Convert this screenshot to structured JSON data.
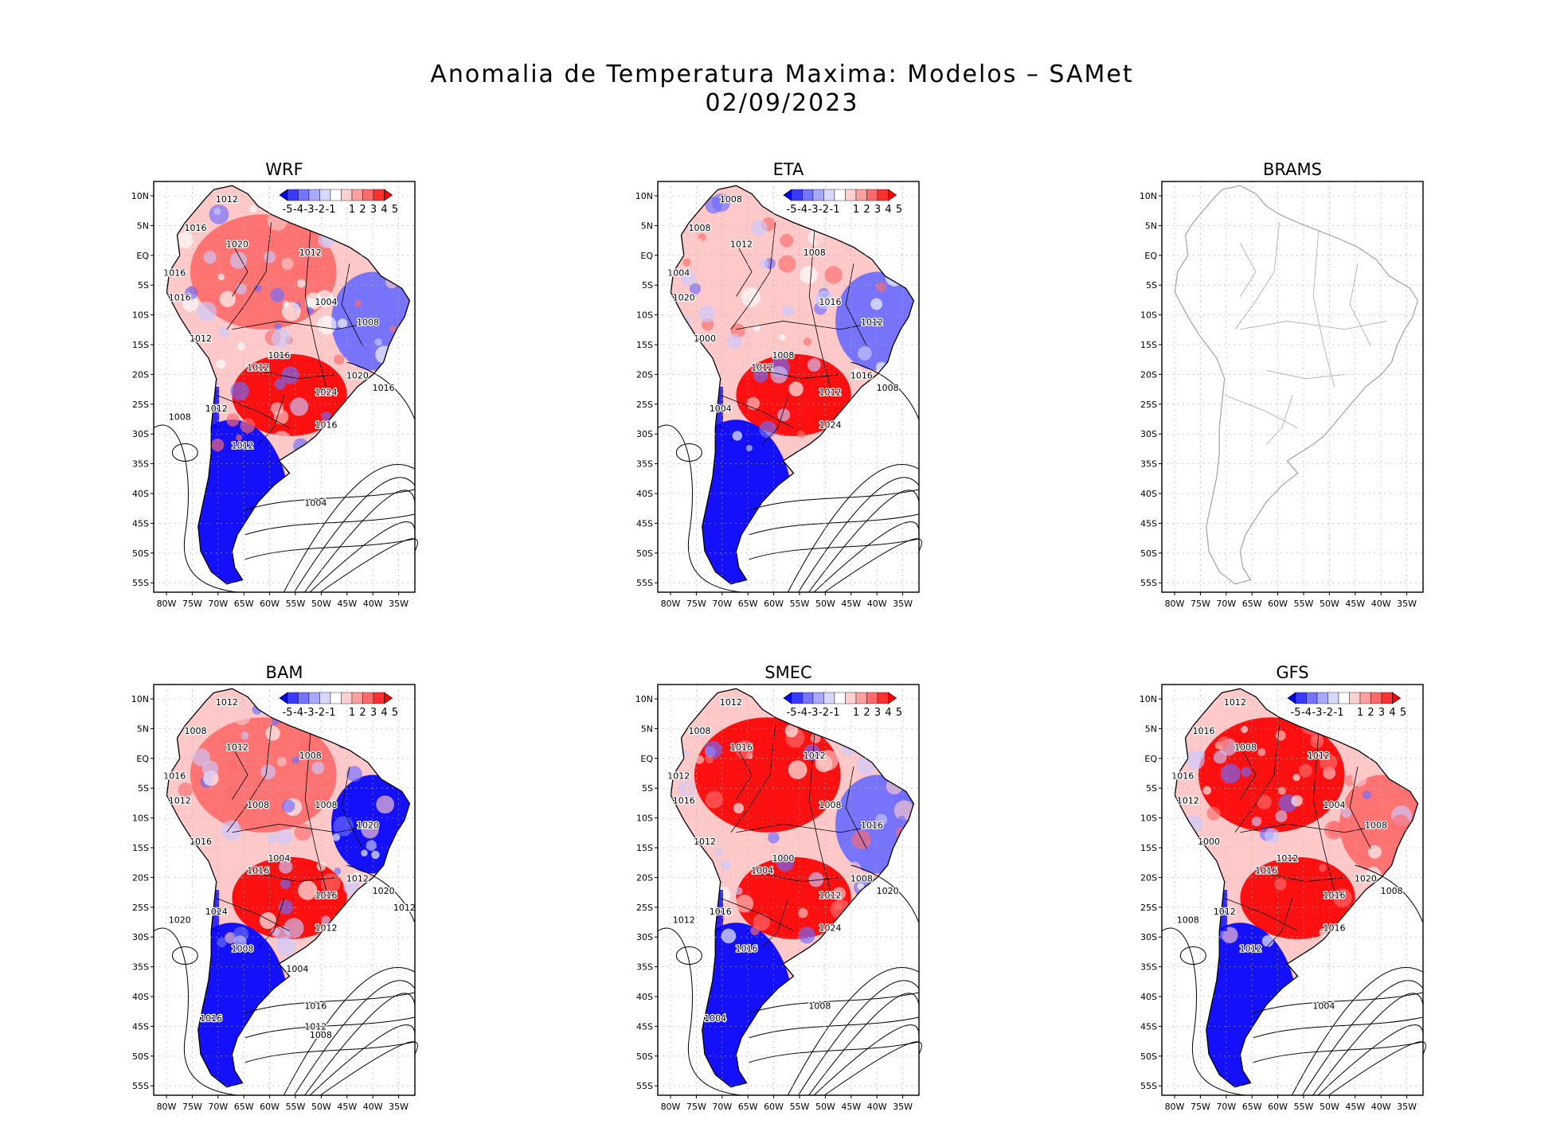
{
  "figure": {
    "title_line1": "Anomalia de Temperatura Maxima: Modelos – SAMet",
    "title_line2": "02/09/2023"
  },
  "colors": {
    "neg_strong": "#0000ff",
    "neg_mid": "#6b6bff",
    "neg_light": "#c9c9ff",
    "neutral": "#ffffff",
    "pos_light": "#ffc9c9",
    "pos_mid": "#ff6b6b",
    "pos_strong": "#ff0000",
    "border_gray": "#a8a8a8",
    "contour": "#000000"
  },
  "axes": {
    "lat_labels": [
      "10N",
      "5N",
      "EQ",
      "5S",
      "10S",
      "15S",
      "20S",
      "25S",
      "30S",
      "35S",
      "40S",
      "45S",
      "50S",
      "55S"
    ],
    "lon_labels": [
      "80W",
      "75W",
      "70W",
      "65W",
      "60W",
      "55W",
      "50W",
      "45W",
      "40W",
      "35W"
    ]
  },
  "colorbar": {
    "labels": [
      "-5",
      "-4",
      "-3",
      "-2",
      "-1",
      "1",
      "2",
      "3",
      "4",
      "5"
    ]
  },
  "panels": [
    {
      "id": "wrf",
      "name": "WRF",
      "has_data": true,
      "north": "pos",
      "northeast": "neg",
      "center": "strong_pos",
      "south": "strong_neg",
      "isobars": [
        "1012",
        "1016",
        "1020",
        "1012",
        "1016",
        "1016",
        "1004",
        "1008",
        "1012",
        "1016",
        "1012",
        "1020",
        "1024",
        "1016",
        "1012",
        "1016",
        "1012",
        "1008",
        "1004"
      ]
    },
    {
      "id": "eta",
      "name": "ETA",
      "has_data": true,
      "north": "mixed",
      "northeast": "neg",
      "center": "strong_pos",
      "south": "strong_neg",
      "isobars": [
        "1008",
        "1008",
        "1012",
        "1008",
        "1004",
        "1020",
        "1016",
        "1012",
        "1000",
        "1008",
        "1012",
        "1016",
        "1012",
        "1008",
        "1004",
        "1024"
      ]
    },
    {
      "id": "brams",
      "name": "BRAMS",
      "has_data": false,
      "isobars": []
    },
    {
      "id": "bam",
      "name": "BAM",
      "has_data": true,
      "north": "pos",
      "northeast": "strong_neg",
      "center": "strong_pos",
      "south": "strong_neg",
      "isobars": [
        "1012",
        "1008",
        "1012",
        "1008",
        "1016",
        "1012",
        "1008",
        "1020",
        "1016",
        "1004",
        "1016",
        "1012",
        "1016",
        "1020",
        "1024",
        "1012",
        "1008",
        "1020",
        "1016",
        "1016",
        "1012",
        "1008",
        "1012",
        "1008",
        "1004"
      ]
    },
    {
      "id": "smec",
      "name": "SMEC",
      "has_data": true,
      "north": "strong_pos",
      "northeast": "neg",
      "center": "strong_pos",
      "south": "strong_neg",
      "isobars": [
        "1012",
        "1008",
        "1016",
        "1012",
        "1012",
        "1016",
        "1008",
        "1016",
        "1012",
        "1000",
        "1004",
        "1008",
        "1012",
        "1020",
        "1016",
        "1024",
        "1016",
        "1012",
        "1008",
        "1004"
      ]
    },
    {
      "id": "gfs",
      "name": "GFS",
      "has_data": true,
      "north": "strong_pos",
      "northeast": "pos",
      "center": "strong_pos",
      "south": "strong_neg",
      "isobars": [
        "1012",
        "1016",
        "1008",
        "1012",
        "1016",
        "1012",
        "1004",
        "1008",
        "1000",
        "1012",
        "1016",
        "1020",
        "1016",
        "1008",
        "1012",
        "1016",
        "1012",
        "1008",
        "1004"
      ]
    }
  ]
}
